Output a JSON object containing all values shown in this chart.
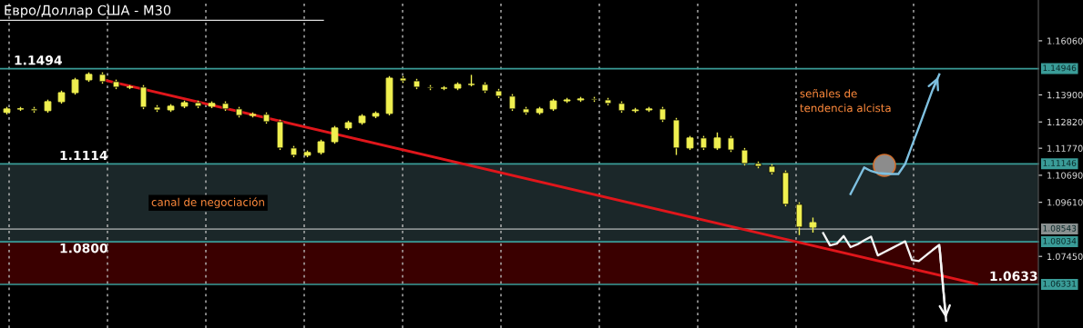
{
  "chart_data": [
    {
      "type": "candlestick",
      "title": "Евро/Доллар США - M30",
      "categories": [
        null,
        null,
        null,
        null,
        null,
        null,
        null,
        null,
        null,
        null,
        null,
        null,
        null,
        null,
        null,
        null,
        null,
        null,
        null,
        null,
        null,
        null,
        null,
        null,
        null,
        null,
        null,
        null,
        null,
        null,
        null,
        null,
        null,
        null,
        null,
        null,
        null,
        null,
        null,
        null,
        null,
        null,
        null,
        null,
        null,
        null,
        null,
        null,
        null,
        null,
        null,
        null,
        null,
        null,
        null,
        null,
        null,
        null,
        null,
        null,
        null,
        null,
        null,
        null,
        null,
        null,
        null,
        null,
        null,
        null,
        null,
        null,
        null,
        null,
        null,
        null
      ],
      "color": "#f0f050",
      "ohlc": [
        [
          1.132,
          1.1342,
          1.1312,
          1.1334
        ],
        [
          1.1334,
          1.1342,
          1.1326,
          1.1334
        ],
        [
          1.1334,
          1.1342,
          1.1319,
          1.1327
        ],
        [
          1.1327,
          1.1371,
          1.1319,
          1.1363
        ],
        [
          1.1363,
          1.1407,
          1.1355,
          1.1399
        ],
        [
          1.1399,
          1.1458,
          1.1391,
          1.145
        ],
        [
          1.145,
          1.148,
          1.1442,
          1.1472
        ],
        [
          1.1472,
          1.148,
          1.1435,
          1.1443
        ],
        [
          1.1443,
          1.1451,
          1.1413,
          1.1421
        ],
        [
          1.1421,
          1.1429,
          1.1413,
          1.1421
        ],
        [
          1.1421,
          1.1429,
          1.1333,
          1.1341
        ],
        [
          1.1341,
          1.1349,
          1.1322,
          1.133
        ],
        [
          1.133,
          1.1353,
          1.1322,
          1.1345
        ],
        [
          1.1345,
          1.1367,
          1.1337,
          1.1359
        ],
        [
          1.1359,
          1.1367,
          1.1337,
          1.1345
        ],
        [
          1.1345,
          1.1364,
          1.1337,
          1.1356
        ],
        [
          1.1356,
          1.1364,
          1.1326,
          1.1334
        ],
        [
          1.1334,
          1.1342,
          1.13,
          1.1308
        ],
        [
          1.1308,
          1.132,
          1.13,
          1.1312
        ],
        [
          1.1312,
          1.132,
          1.1275,
          1.1283
        ],
        [
          1.1283,
          1.1291,
          1.117,
          1.1178
        ],
        [
          1.1178,
          1.1186,
          1.1141,
          1.1149
        ],
        [
          1.1149,
          1.1168,
          1.1141,
          1.116
        ],
        [
          1.116,
          1.1211,
          1.1152,
          1.1203
        ],
        [
          1.1203,
          1.1266,
          1.1195,
          1.1258
        ],
        [
          1.1258,
          1.1287,
          1.125,
          1.1279
        ],
        [
          1.1279,
          1.1313,
          1.1271,
          1.1305
        ],
        [
          1.1305,
          1.1324,
          1.1297,
          1.1316
        ],
        [
          1.1316,
          1.1465,
          1.1308,
          1.1457
        ],
        [
          1.1457,
          1.1465,
          1.1438,
          1.1446
        ],
        [
          1.1446,
          1.1454,
          1.1413,
          1.1421
        ],
        [
          1.1421,
          1.1429,
          1.1409,
          1.1417
        ],
        [
          1.1417,
          1.1425,
          1.1409,
          1.1417
        ],
        [
          1.1417,
          1.144,
          1.1409,
          1.1432
        ],
        [
          1.1432,
          1.147,
          1.1424,
          1.1432
        ],
        [
          1.1432,
          1.144,
          1.1398,
          1.1406
        ],
        [
          1.1406,
          1.1414,
          1.1377,
          1.1385
        ],
        [
          1.1385,
          1.1393,
          1.1326,
          1.1334
        ],
        [
          1.1334,
          1.1342,
          1.1311,
          1.1319
        ],
        [
          1.1319,
          1.1342,
          1.1311,
          1.1334
        ],
        [
          1.1334,
          1.1374,
          1.1326,
          1.1366
        ],
        [
          1.1366,
          1.1378,
          1.1358,
          1.137
        ],
        [
          1.137,
          1.1382,
          1.1362,
          1.1374
        ],
        [
          1.1374,
          1.1382,
          1.1362,
          1.137
        ],
        [
          1.137,
          1.1378,
          1.1348,
          1.1356
        ],
        [
          1.1356,
          1.1364,
          1.1319,
          1.1327
        ],
        [
          1.1327,
          1.1338,
          1.1319,
          1.133
        ],
        [
          1.133,
          1.1342,
          1.1322,
          1.1334
        ],
        [
          1.1334,
          1.1342,
          1.1282,
          1.129
        ],
        [
          1.129,
          1.1298,
          1.115,
          1.1178
        ],
        [
          1.1178,
          1.1226,
          1.117,
          1.1218
        ],
        [
          1.1218,
          1.1226,
          1.117,
          1.1178
        ],
        [
          1.1178,
          1.124,
          1.117,
          1.1218
        ],
        [
          1.1218,
          1.1226,
          1.1162,
          1.117
        ],
        [
          1.117,
          1.1178,
          1.1108,
          1.1116
        ],
        [
          1.1116,
          1.1124,
          1.1097,
          1.1105
        ],
        [
          1.1105,
          1.1113,
          1.1072,
          1.108
        ],
        [
          1.108,
          1.1088,
          1.0945,
          1.0953
        ],
        [
          1.0953,
          1.0961,
          1.083,
          1.0862
        ],
        [
          1.0862,
          1.09,
          1.084,
          1.088
        ],
        null,
        null,
        null,
        null,
        null,
        null,
        null,
        null,
        null,
        null,
        null,
        null,
        null,
        null,
        null,
        null
      ],
      "ylim": [
        1.0459,
        1.1769
      ],
      "yticks": [
        {
          "value": 1.1606,
          "label": "1.16060"
        },
        {
          "value": 1.139,
          "label": "1.13900"
        },
        {
          "value": 1.1282,
          "label": "1.12820"
        },
        {
          "value": 1.1177,
          "label": "1.11770"
        },
        {
          "value": 1.1069,
          "label": "1.10690"
        },
        {
          "value": 1.0961,
          "label": "1.09610"
        },
        {
          "value": 1.0745,
          "label": "1.07450"
        }
      ],
      "tick_labels": "y",
      "grid": "x",
      "ref_lines": [
        {
          "axis": "y",
          "value": 1.14946,
          "label": "1.14946",
          "color": "#3a9c98"
        },
        {
          "axis": "y",
          "value": 1.11146,
          "label": "1.11146",
          "color": "#3a9c98"
        },
        {
          "axis": "y",
          "value": 1.08543,
          "label": "1.08543",
          "color": "#8a9090"
        },
        {
          "axis": "y",
          "value": 1.08034,
          "label": "1.08034",
          "color": "#3a9c98"
        },
        {
          "axis": "y",
          "value": 1.06331,
          "label": "1.06331",
          "color": "#3a9c98"
        }
      ],
      "bands": [
        {
          "axis": "y",
          "from": 1.08034,
          "to": 1.11146,
          "label": "canal de negociación",
          "color": "#1b2729"
        },
        {
          "axis": "y",
          "from": 1.06331,
          "to": 1.08034,
          "color": "#3a0000"
        }
      ],
      "annotations": [
        "1.1494",
        "1.1114",
        "1.0800",
        "1.0633",
        "señales de\ntendencia alcista"
      ]
    },
    {
      "type": "line",
      "categories": [
        null,
        null,
        null,
        null,
        null,
        null,
        null,
        null,
        null,
        null,
        null,
        null,
        null,
        null,
        null,
        null,
        null,
        null,
        null,
        null,
        null,
        null,
        null,
        null,
        null,
        null,
        null,
        null,
        null,
        null,
        null,
        null,
        null,
        null,
        null,
        null,
        null,
        null,
        null,
        null,
        null,
        null,
        null,
        null,
        null,
        null,
        null,
        null,
        null,
        null,
        null,
        null,
        null,
        null,
        null,
        null,
        null,
        null,
        null,
        null,
        null,
        null,
        null,
        null,
        null,
        null,
        null,
        null,
        null,
        null,
        null,
        null,
        null,
        null,
        null,
        null
      ],
      "series": [
        {
          "color": "#e0161b",
          "values": [
            null,
            null,
            null,
            null,
            null,
            null,
            null,
            1.1451,
            null,
            null,
            null,
            null,
            null,
            null,
            null,
            null,
            null,
            null,
            null,
            null,
            null,
            null,
            null,
            null,
            null,
            null,
            null,
            null,
            null,
            null,
            null,
            null,
            null,
            null,
            null,
            null,
            null,
            null,
            null,
            null,
            null,
            null,
            null,
            null,
            null,
            null,
            null,
            null,
            null,
            null,
            null,
            null,
            null,
            null,
            null,
            null,
            null,
            null,
            null,
            null,
            null,
            null,
            null,
            null,
            null,
            null,
            null,
            null,
            null,
            null,
            null,
            1.0635,
            null,
            null,
            null,
            null
          ]
        }
      ],
      "ylim": [
        1.0459,
        1.1769
      ],
      "tick_labels": false
    },
    {
      "type": "line",
      "categories": [
        null,
        null,
        null,
        null,
        null,
        null,
        null,
        null,
        null,
        null,
        null,
        null,
        null,
        null,
        null,
        null,
        null,
        null,
        null,
        null,
        null,
        null,
        null,
        null,
        null,
        null,
        null,
        null,
        null,
        null,
        null,
        null,
        null,
        null,
        null,
        null,
        null,
        null,
        null,
        null,
        null,
        null,
        null,
        null,
        null,
        null,
        null,
        null,
        null,
        null,
        null,
        null,
        null,
        null,
        null,
        null,
        null,
        null,
        null,
        null,
        null,
        null,
        null,
        null,
        null,
        null,
        null,
        null,
        null,
        null,
        null,
        null,
        null,
        null,
        null,
        null,
        null,
        null,
        null,
        null,
        null,
        null,
        null,
        null,
        null,
        null,
        null,
        null,
        null,
        null,
        null,
        null,
        null,
        null,
        null,
        null,
        null,
        null,
        null,
        null,
        null,
        null,
        null,
        null,
        null,
        null,
        null,
        null,
        null,
        null,
        null,
        null,
        null,
        null,
        null,
        null,
        null,
        null,
        null,
        null,
        null,
        null,
        null,
        null,
        null,
        null,
        null,
        null,
        null,
        null,
        null,
        null,
        null,
        null,
        null,
        null,
        null,
        null,
        null,
        null,
        null,
        null,
        null,
        null,
        null,
        null,
        null,
        null,
        null,
        null,
        null,
        null
      ],
      "series": [
        {
          "color": "#7ec0e0",
          "values": [
            null,
            null,
            null,
            null,
            null,
            null,
            null,
            null,
            null,
            null,
            null,
            null,
            null,
            null,
            null,
            null,
            null,
            null,
            null,
            null,
            null,
            null,
            null,
            null,
            null,
            null,
            null,
            null,
            null,
            null,
            null,
            null,
            null,
            null,
            null,
            null,
            null,
            null,
            null,
            null,
            null,
            null,
            null,
            null,
            null,
            null,
            null,
            null,
            null,
            null,
            null,
            null,
            null,
            null,
            null,
            null,
            null,
            null,
            null,
            null,
            null,
            null,
            null,
            null,
            null,
            null,
            null,
            null,
            null,
            null,
            null,
            null,
            null,
            null,
            null,
            null,
            null,
            null,
            null,
            null,
            null,
            null,
            null,
            null,
            null,
            null,
            null,
            null,
            null,
            null,
            null,
            null,
            null,
            null,
            null,
            null,
            null,
            null,
            null,
            null,
            null,
            null,
            null,
            null,
            null,
            null,
            null,
            null,
            null,
            null,
            null,
            null,
            null,
            null,
            null,
            null,
            null,
            null,
            null,
            null,
            null,
            null,
            null,
            null,
            1.0994,
            1.1047,
            1.11,
            1.1086,
            1.1078,
            1.1076,
            1.1074,
            1.1074,
            1.1114,
            1.1188,
            1.126,
            1.1335,
            1.1409,
            1.1472,
            null,
            null,
            null,
            null,
            null,
            null,
            null,
            null,
            null,
            null,
            null,
            null,
            null,
            null
          ]
        }
      ],
      "ylim": [
        1.0459,
        1.1769
      ],
      "tick_labels": false
    },
    {
      "type": "line",
      "categories": [
        null,
        null,
        null,
        null,
        null,
        null,
        null,
        null,
        null,
        null,
        null,
        null,
        null,
        null,
        null,
        null,
        null,
        null,
        null,
        null,
        null,
        null,
        null,
        null,
        null,
        null,
        null,
        null,
        null,
        null,
        null,
        null,
        null,
        null,
        null,
        null,
        null,
        null,
        null,
        null,
        null,
        null,
        null,
        null,
        null,
        null,
        null,
        null,
        null,
        null,
        null,
        null,
        null,
        null,
        null,
        null,
        null,
        null,
        null,
        null,
        null,
        null,
        null,
        null,
        null,
        null,
        null,
        null,
        null,
        null,
        null,
        null,
        null,
        null,
        null,
        null,
        null,
        null,
        null,
        null,
        null,
        null,
        null,
        null,
        null,
        null,
        null,
        null,
        null,
        null,
        null,
        null,
        null,
        null,
        null,
        null,
        null,
        null,
        null,
        null,
        null,
        null,
        null,
        null,
        null,
        null,
        null,
        null,
        null,
        null,
        null,
        null,
        null,
        null,
        null,
        null,
        null,
        null,
        null,
        null,
        null,
        null,
        null,
        null,
        null,
        null,
        null,
        null,
        null,
        null,
        null,
        null,
        null,
        null,
        null,
        null,
        null,
        null,
        null,
        null,
        null,
        null,
        null,
        null,
        null,
        null,
        null,
        null,
        null,
        null,
        null,
        null
      ],
      "series": [
        {
          "color": "#f4f4f4",
          "values": [
            null,
            null,
            null,
            null,
            null,
            null,
            null,
            null,
            null,
            null,
            null,
            null,
            null,
            null,
            null,
            null,
            null,
            null,
            null,
            null,
            null,
            null,
            null,
            null,
            null,
            null,
            null,
            null,
            null,
            null,
            null,
            null,
            null,
            null,
            null,
            null,
            null,
            null,
            null,
            null,
            null,
            null,
            null,
            null,
            null,
            null,
            null,
            null,
            null,
            null,
            null,
            null,
            null,
            null,
            null,
            null,
            null,
            null,
            null,
            null,
            null,
            null,
            null,
            null,
            null,
            null,
            null,
            null,
            null,
            null,
            null,
            null,
            null,
            null,
            null,
            null,
            null,
            null,
            null,
            null,
            null,
            null,
            null,
            null,
            null,
            null,
            null,
            null,
            null,
            null,
            null,
            null,
            null,
            null,
            null,
            null,
            null,
            null,
            null,
            null,
            null,
            null,
            null,
            null,
            null,
            null,
            null,
            null,
            null,
            null,
            null,
            null,
            null,
            null,
            null,
            null,
            null,
            null,
            null,
            null,
            1.0838,
            1.0789,
            1.0796,
            1.0826,
            1.0782,
            1.0793,
            1.0809,
            1.0824,
            1.0749,
            1.0763,
            1.0777,
            1.0791,
            1.0805,
            1.0731,
            1.0726,
            1.0748,
            1.077,
            1.0791,
            1.0488,
            null,
            null,
            null,
            null,
            null,
            null,
            null,
            null,
            null,
            null,
            null,
            null,
            null
          ]
        }
      ],
      "ylim": [
        1.0459,
        1.1769
      ],
      "tick_labels": false
    }
  ]
}
